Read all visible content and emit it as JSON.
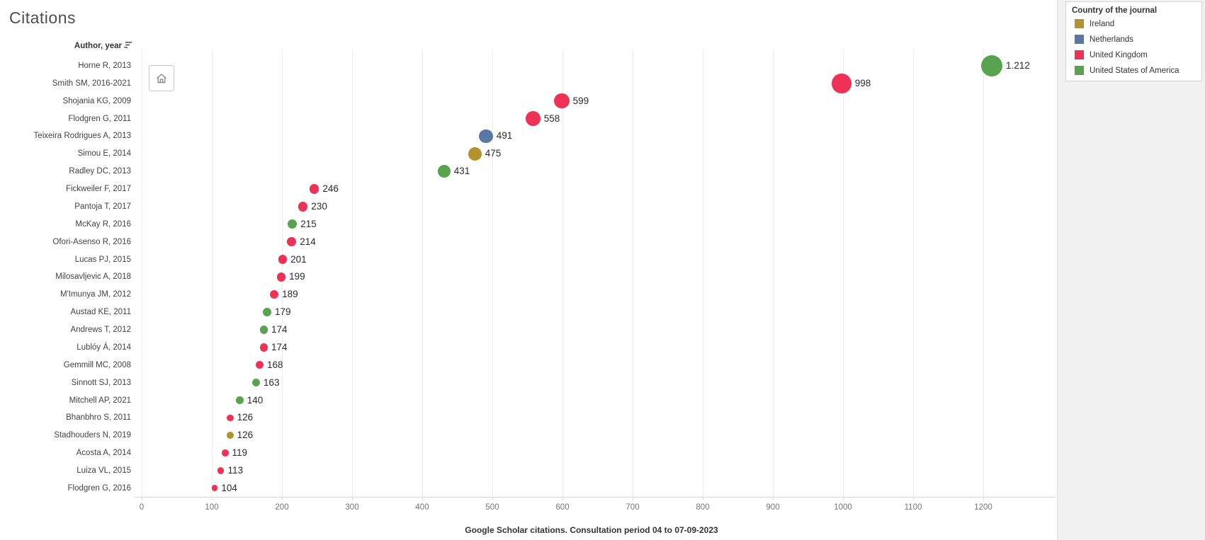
{
  "title": "Citations",
  "row_axis_header": "Author, year",
  "toolbar": {
    "home_button": "reset-view"
  },
  "legend": {
    "title": "Country of the journal",
    "items": [
      {
        "label": "Ireland",
        "color": "#b2932e"
      },
      {
        "label": "Netherlands",
        "color": "#5878a3"
      },
      {
        "label": "United Kingdom",
        "color": "#ef3156"
      },
      {
        "label": "United States of America",
        "color": "#59a24f"
      }
    ]
  },
  "chart_data": {
    "type": "scatter",
    "orientation": "horizontal-category-dot-plot",
    "title": "Citations",
    "xlabel": "Google Scholar citations. Consultation period 04 to 07-09-2023",
    "ylabel": "Author, year",
    "x_ticks": [
      0,
      100,
      200,
      300,
      400,
      500,
      600,
      700,
      800,
      900,
      1000,
      1100,
      1200
    ],
    "x_range": [
      0,
      1300
    ],
    "grid": "vertical-only",
    "legend_position": "top-right",
    "color_by": "Country of the journal",
    "country_colors": {
      "Ireland": "#b2932e",
      "Netherlands": "#5878a3",
      "United Kingdom": "#ef3156",
      "United States of America": "#59a24f"
    },
    "points": [
      {
        "author": "Horne R, 2013",
        "value": 1212,
        "label": "1.212",
        "country": "United States of America"
      },
      {
        "author": "Smith SM, 2016-2021",
        "value": 998,
        "label": "998",
        "country": "United Kingdom"
      },
      {
        "author": "Shojania KG, 2009",
        "value": 599,
        "label": "599",
        "country": "United Kingdom"
      },
      {
        "author": "Flodgren G, 2011",
        "value": 558,
        "label": "558",
        "country": "United Kingdom"
      },
      {
        "author": "Teixeira Rodrigues A, 2013",
        "value": 491,
        "label": "491",
        "country": "Netherlands"
      },
      {
        "author": "Simou E, 2014",
        "value": 475,
        "label": "475",
        "country": "Ireland"
      },
      {
        "author": "Radley DC, 2013",
        "value": 431,
        "label": "431",
        "country": "United States of America"
      },
      {
        "author": "Fickweiler F, 2017",
        "value": 246,
        "label": "246",
        "country": "United Kingdom"
      },
      {
        "author": "Pantoja T, 2017",
        "value": 230,
        "label": "230",
        "country": "United Kingdom"
      },
      {
        "author": "McKay R, 2016",
        "value": 215,
        "label": "215",
        "country": "United States of America"
      },
      {
        "author": "Ofori-Asenso R, 2016",
        "value": 214,
        "label": "214",
        "country": "United Kingdom"
      },
      {
        "author": "Lucas PJ, 2015",
        "value": 201,
        "label": "201",
        "country": "United Kingdom"
      },
      {
        "author": "Milosavljevic A, 2018",
        "value": 199,
        "label": "199",
        "country": "United Kingdom"
      },
      {
        "author": "M'Imunya JM, 2012",
        "value": 189,
        "label": "189",
        "country": "United Kingdom"
      },
      {
        "author": "Austad KE, 2011",
        "value": 179,
        "label": "179",
        "country": "United States of America"
      },
      {
        "author": "Andrews T, 2012",
        "value": 174,
        "label": "174",
        "country": "United States of America"
      },
      {
        "author": "Lublóy Á, 2014",
        "value": 174,
        "label": "174",
        "country": "United Kingdom"
      },
      {
        "author": "Gemmill MC, 2008",
        "value": 168,
        "label": "168",
        "country": "United Kingdom"
      },
      {
        "author": "Sinnott SJ, 2013",
        "value": 163,
        "label": "163",
        "country": "United States of America"
      },
      {
        "author": "Mitchell AP, 2021",
        "value": 140,
        "label": "140",
        "country": "United States of America"
      },
      {
        "author": "Bhanbhro S, 2011",
        "value": 126,
        "label": "126",
        "country": "United Kingdom"
      },
      {
        "author": "Stadhouders N, 2019",
        "value": 126,
        "label": "126",
        "country": "Ireland"
      },
      {
        "author": "Acosta A, 2014",
        "value": 119,
        "label": "119",
        "country": "United Kingdom"
      },
      {
        "author": "Luiza VL, 2015",
        "value": 113,
        "label": "113",
        "country": "United Kingdom"
      },
      {
        "author": "Flodgren G, 2016",
        "value": 104,
        "label": "104",
        "country": "United Kingdom"
      }
    ]
  }
}
